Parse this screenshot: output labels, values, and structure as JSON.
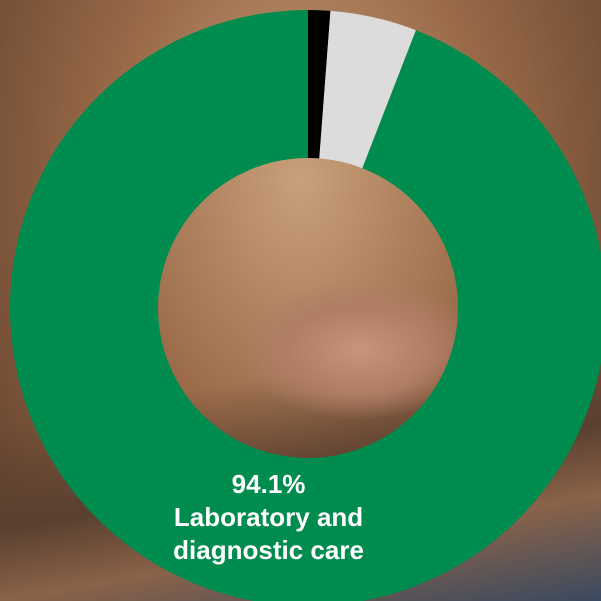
{
  "chart_data": {
    "type": "donut",
    "categories": [
      null,
      null,
      "Laboratory and diagnostic care"
    ],
    "values": [
      1.2,
      4.7,
      94.1
    ],
    "value_labels": [
      null,
      null,
      "94.1%"
    ],
    "colors": [
      "#000000",
      "#dcdcdc",
      "#008c4e"
    ]
  }
}
